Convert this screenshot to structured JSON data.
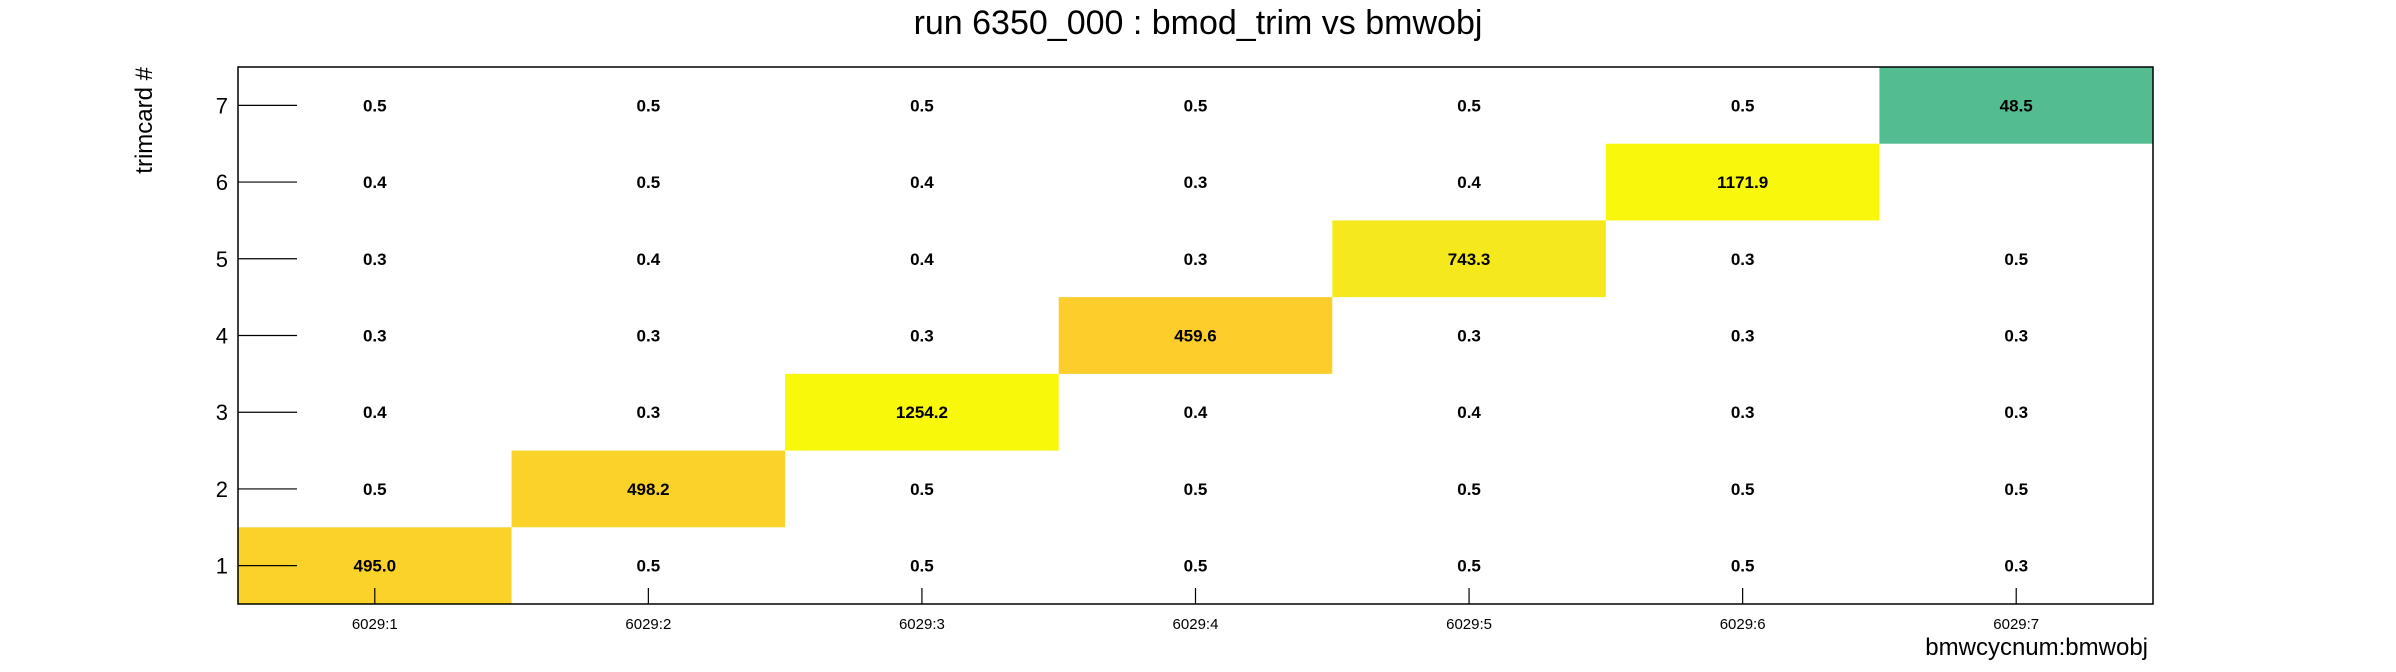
{
  "chart_data": {
    "type": "heatmap",
    "title": "run 6350_000 : bmod_trim vs bmwobj",
    "xlabel": "bmwcycnum:bmwobj",
    "ylabel": "trimcard #",
    "x_categories": [
      "6029:1",
      "6029:2",
      "6029:3",
      "6029:4",
      "6029:5",
      "6029:6",
      "6029:7"
    ],
    "y_categories": [
      "1",
      "2",
      "3",
      "4",
      "5",
      "6",
      "7"
    ],
    "values": [
      [
        "495.0",
        "0.5",
        "0.5",
        "0.5",
        "0.5",
        "0.5",
        "0.3"
      ],
      [
        "0.5",
        "498.2",
        "0.5",
        "0.5",
        "0.5",
        "0.5",
        "0.5"
      ],
      [
        "0.4",
        "0.3",
        "1254.2",
        "0.4",
        "0.4",
        "0.3",
        "0.3"
      ],
      [
        "0.3",
        "0.3",
        "0.3",
        "459.6",
        "0.3",
        "0.3",
        "0.3"
      ],
      [
        "0.3",
        "0.4",
        "0.4",
        "0.3",
        "743.3",
        "0.3",
        "0.5"
      ],
      [
        "0.4",
        "0.5",
        "0.4",
        "0.3",
        "0.4",
        "1171.9",
        ""
      ],
      [
        "0.5",
        "0.5",
        "0.5",
        "0.5",
        "0.5",
        "0.5",
        "48.5"
      ]
    ],
    "highlighted_cells": [
      {
        "row": 0,
        "col": 0,
        "color": "#fad22a"
      },
      {
        "row": 1,
        "col": 1,
        "color": "#fad22a"
      },
      {
        "row": 2,
        "col": 2,
        "color": "#f7f80a"
      },
      {
        "row": 3,
        "col": 3,
        "color": "#fccd2b"
      },
      {
        "row": 4,
        "col": 4,
        "color": "#f5e91e"
      },
      {
        "row": 5,
        "col": 5,
        "color": "#f9f80c"
      },
      {
        "row": 6,
        "col": 6,
        "color": "#53bc91"
      }
    ],
    "grid": false,
    "legend": "none"
  }
}
